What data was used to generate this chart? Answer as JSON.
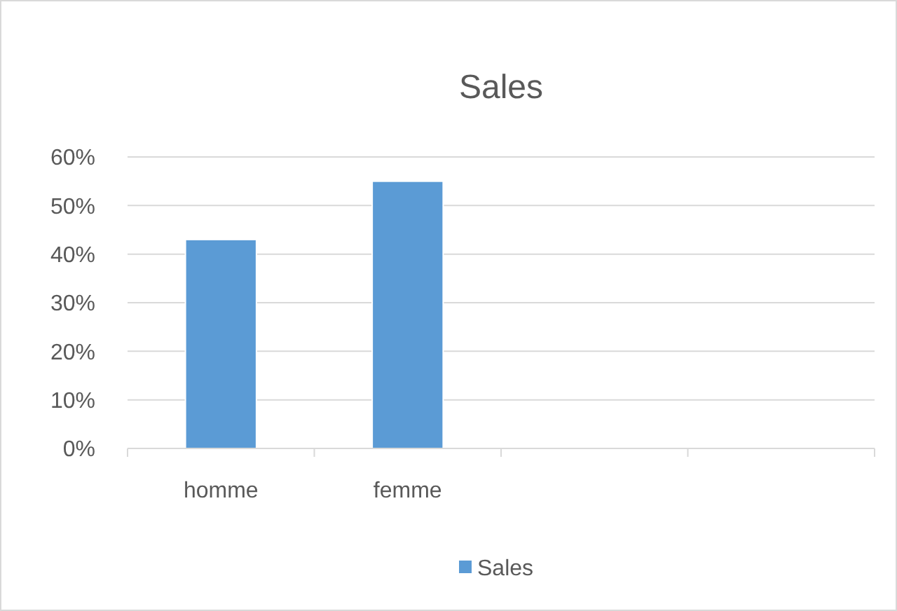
{
  "chart_data": {
    "type": "bar",
    "title": "Sales",
    "categories": [
      "homme",
      "femme",
      null,
      null
    ],
    "series": [
      {
        "name": "Sales",
        "color": "#5b9bd5",
        "values": [
          43,
          55,
          null,
          null
        ]
      }
    ],
    "ylim": [
      0,
      60
    ],
    "yticks": [
      {
        "value": 0,
        "label": "0%"
      },
      {
        "value": 10,
        "label": "10%"
      },
      {
        "value": 20,
        "label": "20%"
      },
      {
        "value": 30,
        "label": "30%"
      },
      {
        "value": 40,
        "label": "40%"
      },
      {
        "value": 50,
        "label": "50%"
      },
      {
        "value": 60,
        "label": "60%"
      }
    ],
    "grid": "y",
    "legend": "bottom"
  }
}
